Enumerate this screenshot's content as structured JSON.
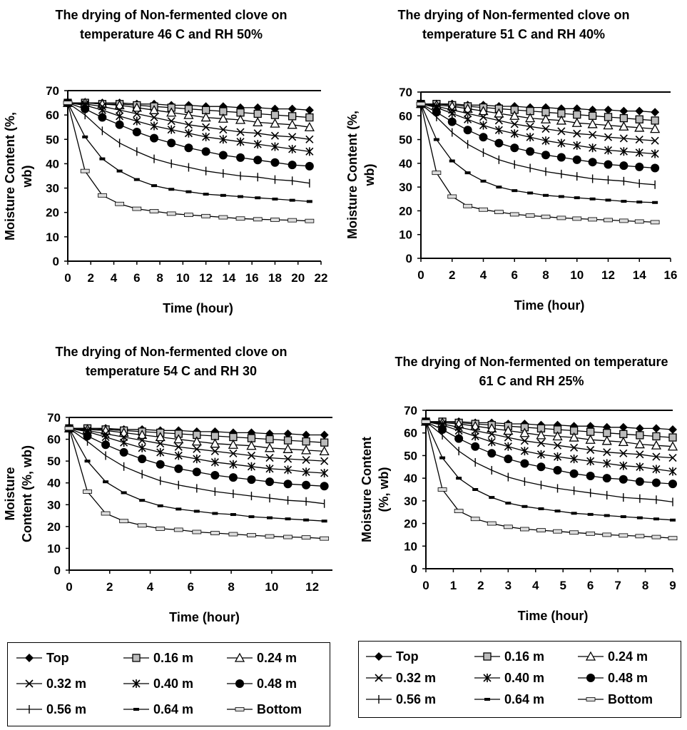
{
  "legend_entries": [
    "Top",
    "0.16 m",
    "0.24 m",
    "0.32 m",
    "0.40 m",
    "0.48 m",
    "0.56 m",
    "0.64 m",
    "Bottom"
  ],
  "chart_data": [
    {
      "type": "line",
      "title": "The drying of Non-fermented clove on temperature 46 C and RH 50%",
      "xlabel": "Time (hour)",
      "ylabel": "Moisture Content (%, wb)",
      "xlim": [
        0,
        22
      ],
      "ylim": [
        0,
        70
      ],
      "xticks": [
        0,
        2,
        4,
        6,
        8,
        10,
        12,
        14,
        16,
        18,
        20,
        22
      ],
      "yticks": [
        0,
        10,
        20,
        30,
        40,
        50,
        60,
        70
      ],
      "x": [
        0,
        1.5,
        3,
        4.5,
        6,
        7.5,
        9,
        10.5,
        12,
        13.5,
        15,
        16.5,
        18,
        19.5,
        21
      ],
      "series": [
        {
          "name": "Top",
          "values": [
            65,
            65,
            65,
            65,
            64.5,
            64.5,
            64,
            64,
            63.5,
            63.5,
            63,
            63,
            62.5,
            62.5,
            62
          ]
        },
        {
          "name": "0.16 m",
          "values": [
            65,
            65,
            64.5,
            64.5,
            64,
            63.5,
            63,
            62.5,
            62,
            61.5,
            61,
            60.5,
            60,
            59.5,
            59
          ]
        },
        {
          "name": "0.24 m",
          "values": [
            65,
            65,
            64.5,
            64,
            63,
            62,
            61,
            60,
            59,
            58.5,
            58,
            57,
            56.5,
            56,
            55
          ]
        },
        {
          "name": "0.32 m",
          "values": [
            65,
            64.5,
            63.5,
            62,
            60.5,
            59,
            57.5,
            56,
            55,
            54,
            53,
            52.5,
            51.5,
            51,
            50
          ]
        },
        {
          "name": "0.40 m",
          "values": [
            65,
            64,
            62,
            59.5,
            57.5,
            55.5,
            54,
            52.5,
            51,
            50,
            49,
            48,
            47,
            46,
            45
          ]
        },
        {
          "name": "0.48 m",
          "values": [
            65,
            62.5,
            59,
            56,
            53,
            50.5,
            48.5,
            46.5,
            45,
            43.5,
            42.5,
            41.5,
            40.5,
            39.5,
            39
          ]
        },
        {
          "name": "0.56 m",
          "values": [
            65,
            60,
            53.5,
            48.5,
            45,
            42,
            40,
            38.5,
            37,
            36,
            35,
            34.5,
            33.5,
            33,
            32
          ]
        },
        {
          "name": "0.64 m",
          "values": [
            65,
            51,
            42,
            37,
            33.5,
            31,
            29.5,
            28.5,
            27.5,
            27,
            26.5,
            26,
            25.5,
            25,
            24.5
          ]
        },
        {
          "name": "Bottom",
          "values": [
            65,
            37,
            27,
            23.5,
            21.5,
            20.5,
            19.5,
            19,
            18.5,
            18,
            17.5,
            17.2,
            17,
            16.8,
            16.5
          ]
        }
      ]
    },
    {
      "type": "line",
      "title": "The drying of Non-fermented clove on temperature 51 C and RH 40%",
      "xlabel": "Time (hour)",
      "ylabel": "Moisture Content (%, wb)",
      "xlim": [
        0,
        16
      ],
      "ylim": [
        0,
        70
      ],
      "xticks": [
        0,
        2,
        4,
        6,
        8,
        10,
        12,
        14,
        16
      ],
      "yticks": [
        0,
        10,
        20,
        30,
        40,
        50,
        60,
        70
      ],
      "x": [
        0,
        1,
        2,
        3,
        4,
        5,
        6,
        7,
        8,
        9,
        10,
        11,
        12,
        13,
        14,
        15
      ],
      "series": [
        {
          "name": "Top",
          "values": [
            65,
            65,
            65,
            64.5,
            64.5,
            64,
            64,
            63.5,
            63.5,
            63,
            63,
            62.5,
            62.5,
            62,
            62,
            61.5
          ]
        },
        {
          "name": "0.16 m",
          "values": [
            65,
            65,
            64.5,
            64,
            63.5,
            63,
            62.5,
            62,
            61.5,
            61,
            60.5,
            60,
            59.5,
            59,
            58.5,
            58
          ]
        },
        {
          "name": "0.24 m",
          "values": [
            65,
            64.5,
            64,
            63,
            62,
            61,
            60,
            59,
            58.5,
            58,
            57,
            56.5,
            56,
            55.5,
            55,
            54.5
          ]
        },
        {
          "name": "0.32 m",
          "values": [
            65,
            64,
            62.5,
            61,
            59.5,
            58,
            56.5,
            55.5,
            54.5,
            53.5,
            52.5,
            52,
            51,
            50.5,
            50,
            49.5
          ]
        },
        {
          "name": "0.40 m",
          "values": [
            65,
            63.5,
            61,
            58.5,
            56,
            54,
            52.5,
            51,
            49.5,
            48.5,
            47.5,
            46.5,
            45.5,
            45,
            44.5,
            44
          ]
        },
        {
          "name": "0.48 m",
          "values": [
            65,
            61.5,
            57.5,
            54,
            51,
            48.5,
            46.5,
            45,
            43.5,
            42.5,
            41.5,
            40.5,
            39.5,
            39,
            38.5,
            38
          ]
        },
        {
          "name": "0.56 m",
          "values": [
            65,
            59.5,
            53,
            48,
            44.5,
            41.5,
            39.5,
            38,
            36.5,
            35.5,
            34.5,
            33.5,
            33,
            32.5,
            31.5,
            31
          ]
        },
        {
          "name": "0.64 m",
          "values": [
            65,
            50,
            41,
            36,
            32.5,
            30,
            28.5,
            27.5,
            26.5,
            26,
            25.5,
            25,
            24.5,
            24,
            23.7,
            23.5
          ]
        },
        {
          "name": "Bottom",
          "values": [
            65,
            36,
            26,
            22,
            20.5,
            19.5,
            18.5,
            18,
            17.5,
            17,
            16.7,
            16.4,
            16.1,
            15.8,
            15.5,
            15.2
          ]
        }
      ]
    },
    {
      "type": "line",
      "title": "The drying of Non-fermented clove on temperature 54 C and RH 30",
      "xlabel": "Time (hour)",
      "ylabel": "Moisture Content (%, wb)",
      "xlim": [
        0,
        13
      ],
      "ylim": [
        0,
        70
      ],
      "xticks": [
        0,
        2,
        4,
        6,
        8,
        10,
        12
      ],
      "yticks": [
        0,
        10,
        20,
        30,
        40,
        50,
        60,
        70
      ],
      "x": [
        0,
        0.9,
        1.8,
        2.7,
        3.6,
        4.5,
        5.4,
        6.3,
        7.2,
        8.1,
        9,
        9.9,
        10.8,
        11.7,
        12.6
      ],
      "series": [
        {
          "name": "Top",
          "values": [
            65,
            65,
            65,
            64.5,
            64.5,
            64,
            64,
            63.5,
            63.5,
            63,
            63,
            62.5,
            62.5,
            62,
            62
          ]
        },
        {
          "name": "0.16 m",
          "values": [
            65,
            65,
            64.5,
            64,
            63.5,
            63,
            62.5,
            62,
            61.5,
            61,
            60.5,
            60,
            59.5,
            59,
            58.5
          ]
        },
        {
          "name": "0.24 m",
          "values": [
            65,
            64.5,
            64,
            63,
            62,
            61,
            60,
            59,
            58,
            57.5,
            57,
            56,
            55.5,
            55,
            54.5
          ]
        },
        {
          "name": "0.32 m",
          "values": [
            65,
            64,
            62.5,
            61,
            59.5,
            58,
            56.5,
            55.5,
            54.5,
            53.5,
            52.5,
            51.5,
            51,
            50.5,
            50
          ]
        },
        {
          "name": "0.40 m",
          "values": [
            65,
            63.5,
            61,
            58.5,
            56,
            54,
            52.5,
            51,
            49.5,
            48.5,
            47.5,
            46.5,
            46,
            45,
            44.5
          ]
        },
        {
          "name": "0.48 m",
          "values": [
            65,
            61.5,
            57.5,
            54,
            51,
            48.5,
            46.5,
            45,
            43.5,
            42.5,
            41.5,
            40.5,
            39.5,
            39,
            38.5
          ]
        },
        {
          "name": "0.56 m",
          "values": [
            65,
            59,
            52.5,
            47.5,
            44,
            41,
            39,
            37.5,
            36,
            35,
            34,
            33,
            32,
            31.5,
            30.5
          ]
        },
        {
          "name": "0.64 m",
          "values": [
            65,
            50,
            40.5,
            35.5,
            32,
            29.5,
            28,
            27,
            26,
            25.5,
            24.5,
            24,
            23.5,
            23,
            22.5
          ]
        },
        {
          "name": "Bottom",
          "values": [
            65,
            36,
            26,
            22.5,
            20.5,
            19,
            18.5,
            17.5,
            17,
            16.5,
            16,
            15.5,
            15.2,
            15,
            14.5
          ]
        }
      ]
    },
    {
      "type": "line",
      "title": "The drying of Non-fermented on temperature 61 C and RH 25%",
      "xlabel": "Time (hour)",
      "ylabel": "Moisture Content (%, wb)",
      "xlim": [
        0,
        9
      ],
      "ylim": [
        0,
        70
      ],
      "xticks": [
        0,
        1,
        2,
        3,
        4,
        5,
        6,
        7,
        8,
        9
      ],
      "yticks": [
        0,
        10,
        20,
        30,
        40,
        50,
        60,
        70
      ],
      "x": [
        0,
        0.6,
        1.2,
        1.8,
        2.4,
        3,
        3.6,
        4.2,
        4.8,
        5.4,
        6,
        6.6,
        7.2,
        7.8,
        8.4,
        9
      ],
      "series": [
        {
          "name": "Top",
          "values": [
            65,
            65,
            65,
            64.5,
            64.5,
            64,
            64,
            63.5,
            63.5,
            63,
            63,
            62.5,
            62.5,
            62,
            62,
            61.5
          ]
        },
        {
          "name": "0.16 m",
          "values": [
            65,
            65,
            64.5,
            64,
            63.5,
            63,
            62.5,
            62,
            61.5,
            61,
            60.5,
            60,
            59.5,
            59,
            58.5,
            58
          ]
        },
        {
          "name": "0.24 m",
          "values": [
            65,
            64.5,
            64,
            63,
            62,
            61,
            60,
            59,
            58.5,
            58,
            57,
            56.5,
            56,
            55,
            54.5,
            54
          ]
        },
        {
          "name": "0.32 m",
          "values": [
            65,
            64,
            62.5,
            61,
            59.5,
            58,
            56.5,
            55.5,
            54.5,
            53.5,
            52.5,
            51.5,
            51,
            50.5,
            49.5,
            49
          ]
        },
        {
          "name": "0.40 m",
          "values": [
            65,
            63.5,
            61,
            58.5,
            56,
            54,
            52,
            50.5,
            49.5,
            48.5,
            47.5,
            46.5,
            45.5,
            45,
            44,
            43
          ]
        },
        {
          "name": "0.48 m",
          "values": [
            65,
            61.5,
            57.5,
            54,
            51,
            48.5,
            46.5,
            45,
            43.5,
            42,
            41,
            40,
            39.5,
            38.5,
            38,
            37.5
          ]
        },
        {
          "name": "0.56 m",
          "values": [
            65,
            59,
            52,
            47,
            43.5,
            40.5,
            38.5,
            37,
            35.5,
            34.5,
            33.5,
            32.5,
            31.5,
            31,
            30.5,
            29.5
          ]
        },
        {
          "name": "0.64 m",
          "values": [
            65,
            49,
            40,
            35,
            31.5,
            29,
            27.5,
            26.5,
            25.5,
            24.5,
            24,
            23.5,
            23,
            22.5,
            22,
            21.5
          ]
        },
        {
          "name": "Bottom",
          "values": [
            65,
            35,
            25.5,
            22,
            20,
            18.5,
            17.5,
            17,
            16.5,
            16,
            15.5,
            15,
            14.7,
            14.4,
            14,
            13.5
          ]
        }
      ]
    }
  ]
}
